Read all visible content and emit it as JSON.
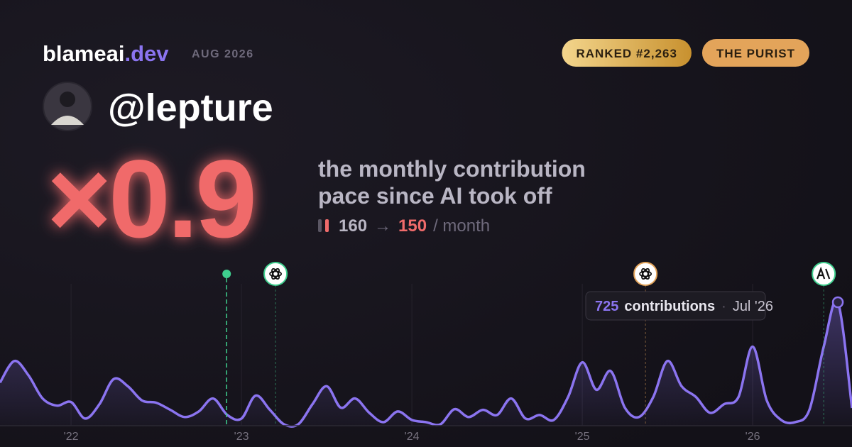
{
  "header": {
    "brand": "blameai",
    "tld": ".dev",
    "date": "AUG 2026",
    "badges": [
      {
        "text": "RANKED #2,263",
        "color": "#e2b04f"
      },
      {
        "text": "THE PURIST",
        "color": "#e3a45a"
      }
    ]
  },
  "user": {
    "handle": "@lepture"
  },
  "stat": {
    "multiplier": "×0.9",
    "caption": [
      "the monthly contribution",
      "pace since AI took off"
    ],
    "before": "160",
    "arrow": "→",
    "after": "150",
    "unit": "/ month"
  },
  "chart_data": {
    "type": "area",
    "color": "#8b74f0",
    "x": [
      2021.583,
      2021.667,
      2021.75,
      2021.833,
      2021.917,
      2022.0,
      2022.083,
      2022.167,
      2022.25,
      2022.333,
      2022.417,
      2022.5,
      2022.583,
      2022.667,
      2022.75,
      2022.833,
      2022.917,
      2023.0,
      2023.083,
      2023.167,
      2023.25,
      2023.333,
      2023.417,
      2023.5,
      2023.583,
      2023.667,
      2023.75,
      2023.833,
      2023.917,
      2024.0,
      2024.083,
      2024.167,
      2024.25,
      2024.333,
      2024.417,
      2024.5,
      2024.583,
      2024.667,
      2024.75,
      2024.833,
      2024.917,
      2025.0,
      2025.083,
      2025.167,
      2025.25,
      2025.333,
      2025.417,
      2025.5,
      2025.583,
      2025.667,
      2025.75,
      2025.833,
      2025.917,
      2026.0,
      2026.083,
      2026.167,
      2026.25,
      2026.333,
      2026.417,
      2026.5,
      2026.583
    ],
    "series": [
      {
        "name": "contributions",
        "values": [
          253,
          380,
          296,
          160,
          118,
          139,
          42,
          127,
          274,
          232,
          148,
          135,
          93,
          51,
          84,
          160,
          63,
          42,
          177,
          93,
          8,
          8,
          127,
          232,
          106,
          160,
          76,
          21,
          84,
          34,
          21,
          8,
          97,
          51,
          93,
          63,
          160,
          42,
          63,
          34,
          169,
          372,
          211,
          321,
          106,
          51,
          169,
          380,
          232,
          169,
          76,
          127,
          169,
          464,
          148,
          34,
          21,
          93,
          464,
          725,
          104
        ]
      }
    ],
    "xlim": [
      2021.583,
      2026.583
    ],
    "ylim": [
      0,
      750
    ],
    "xticks": [
      {
        "value": 2022,
        "label": "'22"
      },
      {
        "value": 2023,
        "label": "'23"
      },
      {
        "value": 2024,
        "label": "'24"
      },
      {
        "value": 2025,
        "label": "'25"
      },
      {
        "value": 2026,
        "label": "'26"
      }
    ],
    "grid": true,
    "events": [
      {
        "x": 2022.913,
        "color": "#3fcf8e",
        "icon": "dot"
      },
      {
        "x": 2023.2,
        "color": "#3fcf8e",
        "icon": "openai"
      },
      {
        "x": 2025.371,
        "color": "#e3a45a",
        "icon": "openai"
      },
      {
        "x": 2026.417,
        "color": "#3fcf8e",
        "icon": "anthropic"
      }
    ],
    "tooltip": {
      "label": "contributions",
      "separator": "·",
      "date": "Jul '26"
    }
  }
}
